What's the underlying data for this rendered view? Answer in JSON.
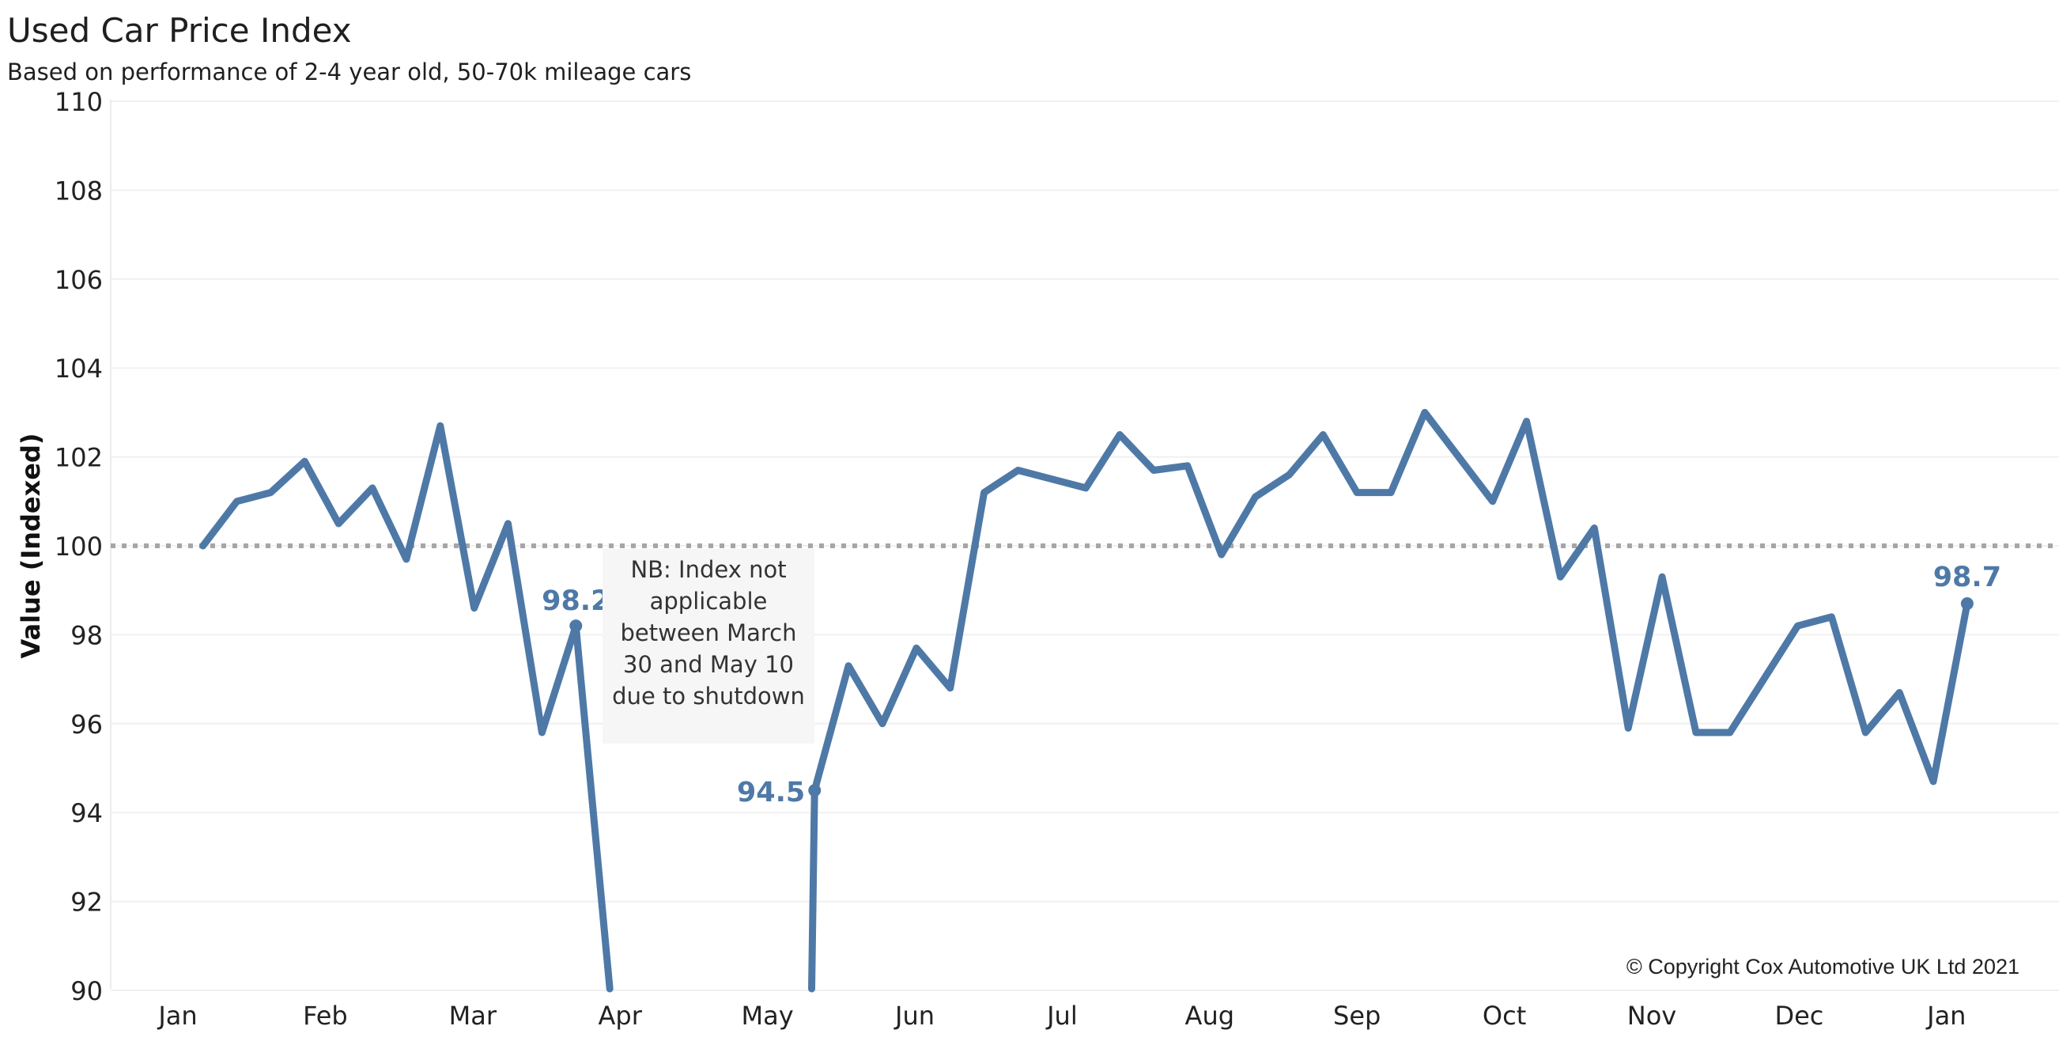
{
  "header": {
    "title": "Used Car Price Index",
    "subtitle": "Based on performance of 2-4 year old, 50-70k mileage cars"
  },
  "note": "NB: Index not applicable between March 30 and May 10 due to shutdown",
  "copyright": "© Copyright Cox Automotive UK Ltd 2021",
  "colors": {
    "line": "#4e79a7",
    "reference": "#a6a6a6",
    "grid": "#f0f0f0"
  },
  "chart_data": {
    "type": "line",
    "ylabel": "Value (Indexed)",
    "ylim": [
      90,
      110
    ],
    "yticks": [
      90,
      92,
      94,
      96,
      98,
      100,
      102,
      104,
      106,
      108,
      110
    ],
    "xticks": [
      "Jan",
      "Feb",
      "Mar",
      "Apr",
      "May",
      "Jun",
      "Jul",
      "Aug",
      "Sep",
      "Oct",
      "Nov",
      "Dec",
      "Jan"
    ],
    "reference_line": 100,
    "grid": true,
    "segments": [
      {
        "period": "before shutdown",
        "x": [
          0.17,
          0.4,
          0.63,
          0.86,
          1.09,
          1.32,
          1.55,
          1.78,
          2.01,
          2.24,
          2.47,
          2.7,
          2.93
        ],
        "y": [
          100.0,
          101.0,
          101.2,
          101.9,
          100.5,
          101.3,
          99.7,
          102.7,
          98.6,
          100.5,
          95.8,
          98.2,
          88.5
        ]
      },
      {
        "period": "after shutdown",
        "x": [
          4.3,
          4.32,
          4.55,
          4.78,
          5.01,
          5.24,
          5.47,
          5.7,
          5.93,
          6.16,
          6.39,
          6.62,
          6.85,
          7.08,
          7.31,
          7.54,
          7.77,
          8.0,
          8.23,
          8.46,
          8.69,
          8.92,
          9.15,
          9.38,
          9.61,
          9.84,
          10.07,
          10.3,
          10.53,
          10.76,
          10.99,
          11.22,
          11.45,
          11.68,
          11.91,
          12.14
        ],
        "y": [
          88.5,
          94.5,
          97.3,
          96.0,
          97.7,
          96.8,
          101.2,
          101.7,
          101.5,
          101.3,
          102.5,
          101.7,
          101.8,
          99.8,
          101.1,
          101.6,
          102.5,
          101.2,
          101.2,
          103.0,
          102.0,
          101.0,
          102.8,
          99.3,
          100.4,
          95.9,
          99.3,
          95.8,
          95.8,
          97.0,
          98.2,
          98.4,
          95.8,
          96.7,
          94.7,
          98.7
        ]
      }
    ],
    "data_labels": [
      {
        "text": "98.2",
        "x": 2.7,
        "y": 98.2
      },
      {
        "text": "94.5",
        "x": 4.32,
        "y": 94.5
      },
      {
        "text": "98.7",
        "x": 12.14,
        "y": 98.7
      }
    ]
  }
}
